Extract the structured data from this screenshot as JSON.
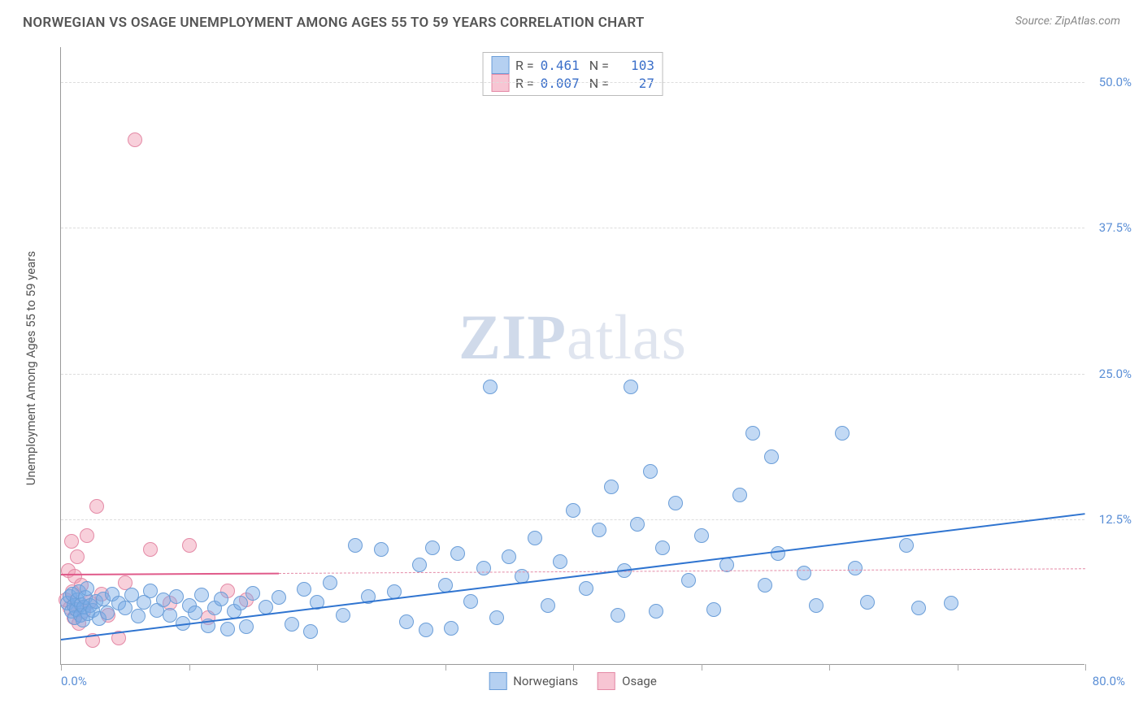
{
  "header": {
    "title": "NORWEGIAN VS OSAGE UNEMPLOYMENT AMONG AGES 55 TO 59 YEARS CORRELATION CHART",
    "source_prefix": "Source: ",
    "source_name": "ZipAtlas.com"
  },
  "watermark": {
    "zip": "ZIP",
    "atlas": "atlas"
  },
  "chart": {
    "type": "scatter",
    "y_axis_label": "Unemployment Among Ages 55 to 59 years",
    "xlim": [
      0,
      80
    ],
    "ylim": [
      0,
      53
    ],
    "x_min_label": "0.0%",
    "x_max_label": "80.0%",
    "y_ticks": [
      {
        "v": 12.5,
        "label": "12.5%"
      },
      {
        "v": 25.0,
        "label": "25.0%"
      },
      {
        "v": 37.5,
        "label": "37.5%"
      },
      {
        "v": 50.0,
        "label": "50.0%"
      }
    ],
    "x_tick_positions": [
      0,
      10,
      20,
      30,
      40,
      50,
      60,
      70,
      80
    ],
    "background_color": "#ffffff",
    "grid_color": "#dddddd",
    "axis_color": "#999999",
    "tick_label_color": "#5b8fd6",
    "marker_radius": 9,
    "marker_border_width": 1.2,
    "series": {
      "norwegians": {
        "label": "Norwegians",
        "fill": "rgba(120,170,230,0.45)",
        "stroke": "#6b9ed8",
        "R": "0.461",
        "N": "103",
        "trend": {
          "x1": 0,
          "y1": 2.2,
          "x2": 80,
          "y2": 13.0,
          "color": "#2f74d0",
          "width": 2.2,
          "dash": "solid"
        },
        "trend_ext": {
          "x1": 0,
          "y1": 2.2,
          "x2": 80,
          "y2": 13.0,
          "color": "#2f74d0",
          "width": 1,
          "dash": "dashed"
        },
        "points": [
          [
            0.5,
            5.2
          ],
          [
            0.7,
            5.8
          ],
          [
            0.8,
            4.5
          ],
          [
            0.9,
            6.0
          ],
          [
            1.0,
            5.0
          ],
          [
            1.1,
            4.0
          ],
          [
            1.2,
            4.7
          ],
          [
            1.3,
            5.5
          ],
          [
            1.4,
            6.2
          ],
          [
            1.5,
            4.2
          ],
          [
            1.6,
            5.1
          ],
          [
            1.7,
            3.8
          ],
          [
            1.8,
            4.9
          ],
          [
            1.9,
            5.7
          ],
          [
            2.0,
            6.5
          ],
          [
            2.1,
            4.3
          ],
          [
            2.3,
            5.0
          ],
          [
            2.5,
            4.6
          ],
          [
            2.7,
            5.4
          ],
          [
            3.0,
            3.9
          ],
          [
            3.3,
            5.6
          ],
          [
            3.6,
            4.4
          ],
          [
            4.0,
            6.0
          ],
          [
            4.5,
            5.2
          ],
          [
            5.0,
            4.8
          ],
          [
            5.5,
            5.9
          ],
          [
            6.0,
            4.1
          ],
          [
            6.5,
            5.3
          ],
          [
            7.0,
            6.3
          ],
          [
            7.5,
            4.6
          ],
          [
            8.0,
            5.5
          ],
          [
            8.5,
            4.2
          ],
          [
            9.0,
            5.8
          ],
          [
            9.5,
            3.5
          ],
          [
            10.0,
            5.0
          ],
          [
            10.5,
            4.4
          ],
          [
            11.0,
            5.9
          ],
          [
            11.5,
            3.3
          ],
          [
            12.0,
            4.8
          ],
          [
            12.5,
            5.6
          ],
          [
            13.0,
            3.0
          ],
          [
            13.5,
            4.5
          ],
          [
            14.0,
            5.2
          ],
          [
            14.5,
            3.2
          ],
          [
            15.0,
            6.1
          ],
          [
            16.0,
            4.9
          ],
          [
            17.0,
            5.7
          ],
          [
            18.0,
            3.4
          ],
          [
            19.0,
            6.4
          ],
          [
            19.5,
            2.8
          ],
          [
            20.0,
            5.3
          ],
          [
            21.0,
            7.0
          ],
          [
            22.0,
            4.2
          ],
          [
            23.0,
            10.2
          ],
          [
            24.0,
            5.8
          ],
          [
            25.0,
            9.8
          ],
          [
            26.0,
            6.2
          ],
          [
            27.0,
            3.6
          ],
          [
            28.0,
            8.5
          ],
          [
            28.5,
            2.9
          ],
          [
            29.0,
            10.0
          ],
          [
            30.0,
            6.8
          ],
          [
            30.5,
            3.1
          ],
          [
            31.0,
            9.5
          ],
          [
            32.0,
            5.4
          ],
          [
            33.0,
            8.2
          ],
          [
            33.5,
            23.8
          ],
          [
            34.0,
            4.0
          ],
          [
            35.0,
            9.2
          ],
          [
            36.0,
            7.5
          ],
          [
            37.0,
            10.8
          ],
          [
            38.0,
            5.0
          ],
          [
            39.0,
            8.8
          ],
          [
            40.0,
            13.2
          ],
          [
            41.0,
            6.5
          ],
          [
            42.0,
            11.5
          ],
          [
            43.0,
            15.2
          ],
          [
            43.5,
            4.2
          ],
          [
            44.0,
            8.0
          ],
          [
            44.5,
            23.8
          ],
          [
            45.0,
            12.0
          ],
          [
            46.0,
            16.5
          ],
          [
            46.5,
            4.5
          ],
          [
            47.0,
            10.0
          ],
          [
            48.0,
            13.8
          ],
          [
            49.0,
            7.2
          ],
          [
            50.0,
            11.0
          ],
          [
            51.0,
            4.7
          ],
          [
            52.0,
            8.5
          ],
          [
            53.0,
            14.5
          ],
          [
            54.0,
            19.8
          ],
          [
            55.0,
            6.8
          ],
          [
            55.5,
            17.8
          ],
          [
            56.0,
            9.5
          ],
          [
            58.0,
            7.8
          ],
          [
            59.0,
            5.0
          ],
          [
            61.0,
            19.8
          ],
          [
            62.0,
            8.2
          ],
          [
            63.0,
            5.3
          ],
          [
            66.0,
            10.2
          ],
          [
            67.0,
            4.8
          ],
          [
            69.5,
            5.2
          ]
        ]
      },
      "osage": {
        "label": "Osage",
        "fill": "rgba(240,150,175,0.45)",
        "stroke": "#e48aa6",
        "R": "0.007",
        "N": "27",
        "trend": {
          "x1": 0,
          "y1": 7.8,
          "x2": 17,
          "y2": 7.9,
          "color": "#e05a8a",
          "width": 2.2,
          "dash": "solid"
        },
        "trend_ext": {
          "x1": 17,
          "y1": 7.9,
          "x2": 80,
          "y2": 8.3,
          "color": "#e48aa6",
          "width": 1,
          "dash": "dashed"
        },
        "points": [
          [
            0.4,
            5.5
          ],
          [
            0.6,
            8.0
          ],
          [
            0.7,
            4.8
          ],
          [
            0.8,
            10.5
          ],
          [
            0.9,
            6.2
          ],
          [
            1.0,
            4.0
          ],
          [
            1.1,
            7.5
          ],
          [
            1.2,
            5.0
          ],
          [
            1.3,
            9.2
          ],
          [
            1.4,
            3.5
          ],
          [
            1.6,
            6.8
          ],
          [
            1.8,
            4.5
          ],
          [
            2.0,
            11.0
          ],
          [
            2.2,
            5.3
          ],
          [
            2.5,
            2.0
          ],
          [
            2.8,
            13.5
          ],
          [
            3.2,
            6.0
          ],
          [
            3.7,
            4.2
          ],
          [
            4.5,
            2.2
          ],
          [
            5.0,
            7.0
          ],
          [
            5.8,
            45.0
          ],
          [
            7.0,
            9.8
          ],
          [
            8.5,
            5.2
          ],
          [
            10.0,
            10.2
          ],
          [
            11.5,
            4.0
          ],
          [
            13.0,
            6.3
          ],
          [
            14.5,
            5.5
          ]
        ]
      }
    },
    "legend_top_swatch_border": {
      "norwegians": "#6b9ed8",
      "osage": "#e48aa6"
    },
    "legend_top_swatch_fill": {
      "norwegians": "rgba(120,170,230,0.55)",
      "osage": "rgba(240,150,175,0.55)"
    }
  }
}
